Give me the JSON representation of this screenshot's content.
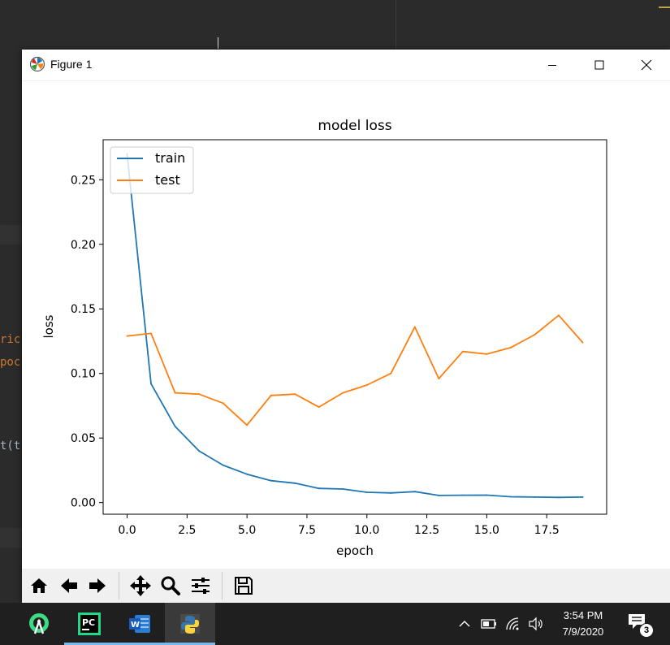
{
  "window": {
    "title": "Figure 1"
  },
  "editor": {
    "fragments": [
      "ric",
      "poc",
      "t(t"
    ]
  },
  "chart_data": {
    "type": "line",
    "title": "model loss",
    "xlabel": "epoch",
    "ylabel": "loss",
    "xlim": [
      -1.0,
      20.0
    ],
    "ylim": [
      -0.009,
      0.281
    ],
    "xticks": [
      0.0,
      2.5,
      5.0,
      7.5,
      10.0,
      12.5,
      15.0,
      17.5
    ],
    "xtick_labels": [
      "0.0",
      "2.5",
      "5.0",
      "7.5",
      "10.0",
      "12.5",
      "15.0",
      "17.5"
    ],
    "yticks": [
      0.0,
      0.05,
      0.1,
      0.15,
      0.2,
      0.25
    ],
    "ytick_labels": [
      "0.00",
      "0.05",
      "0.10",
      "0.15",
      "0.20",
      "0.25"
    ],
    "legend_loc": "upper left",
    "x": [
      0,
      1,
      2,
      3,
      4,
      5,
      6,
      7,
      8,
      9,
      10,
      11,
      12,
      13,
      14,
      15,
      16,
      17,
      18,
      19
    ],
    "series": [
      {
        "name": "train",
        "color": "#1f77b4",
        "values": [
          0.27,
          0.092,
          0.059,
          0.04,
          0.029,
          0.022,
          0.017,
          0.015,
          0.011,
          0.0105,
          0.008,
          0.0075,
          0.0085,
          0.0055,
          0.0057,
          0.0058,
          0.0045,
          0.0043,
          0.004,
          0.0043
        ]
      },
      {
        "name": "test",
        "color": "#ff7f0e",
        "values": [
          0.129,
          0.131,
          0.085,
          0.084,
          0.077,
          0.06,
          0.083,
          0.084,
          0.074,
          0.085,
          0.091,
          0.1,
          0.136,
          0.096,
          0.117,
          0.115,
          0.12,
          0.13,
          0.145,
          0.124
        ]
      }
    ]
  },
  "toolbar": {
    "buttons": [
      "home-icon",
      "back-icon",
      "forward-icon",
      "pan-icon",
      "zoom-icon",
      "configure-subplots-icon",
      "save-icon"
    ]
  },
  "taskbar": {
    "apps": [
      "android-studio-icon",
      "pycharm-icon",
      "word-icon",
      "python-icon"
    ],
    "pycharm_label": "PC",
    "word_label": "W",
    "time": "3:54 PM",
    "date": "7/9/2020",
    "notification_count": "3"
  }
}
